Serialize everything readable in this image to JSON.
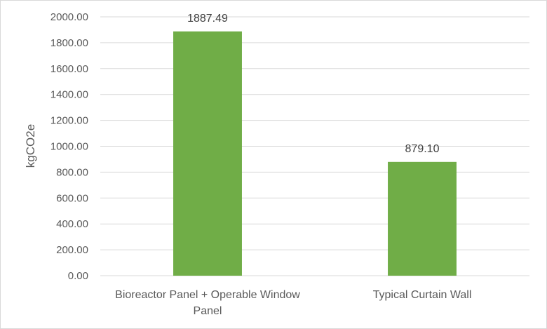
{
  "chart_data": {
    "type": "bar",
    "categories": [
      [
        "Bioreactor Panel + Operable Window",
        "Panel"
      ],
      [
        "Typical Curtain Wall"
      ]
    ],
    "values": [
      1887.49,
      879.1
    ],
    "data_labels": [
      "1887.49",
      "879.10"
    ],
    "ylabel": "kgCO2e",
    "xlabel": "",
    "ylim": [
      0,
      2000
    ],
    "yticks": [
      "0.00",
      "200.00",
      "400.00",
      "600.00",
      "800.00",
      "1000.00",
      "1200.00",
      "1400.00",
      "1600.00",
      "1800.00",
      "2000.00"
    ],
    "grid": true,
    "legend": "none",
    "bar_color": "#70ad47",
    "grid_color": "#d9d9d9"
  }
}
